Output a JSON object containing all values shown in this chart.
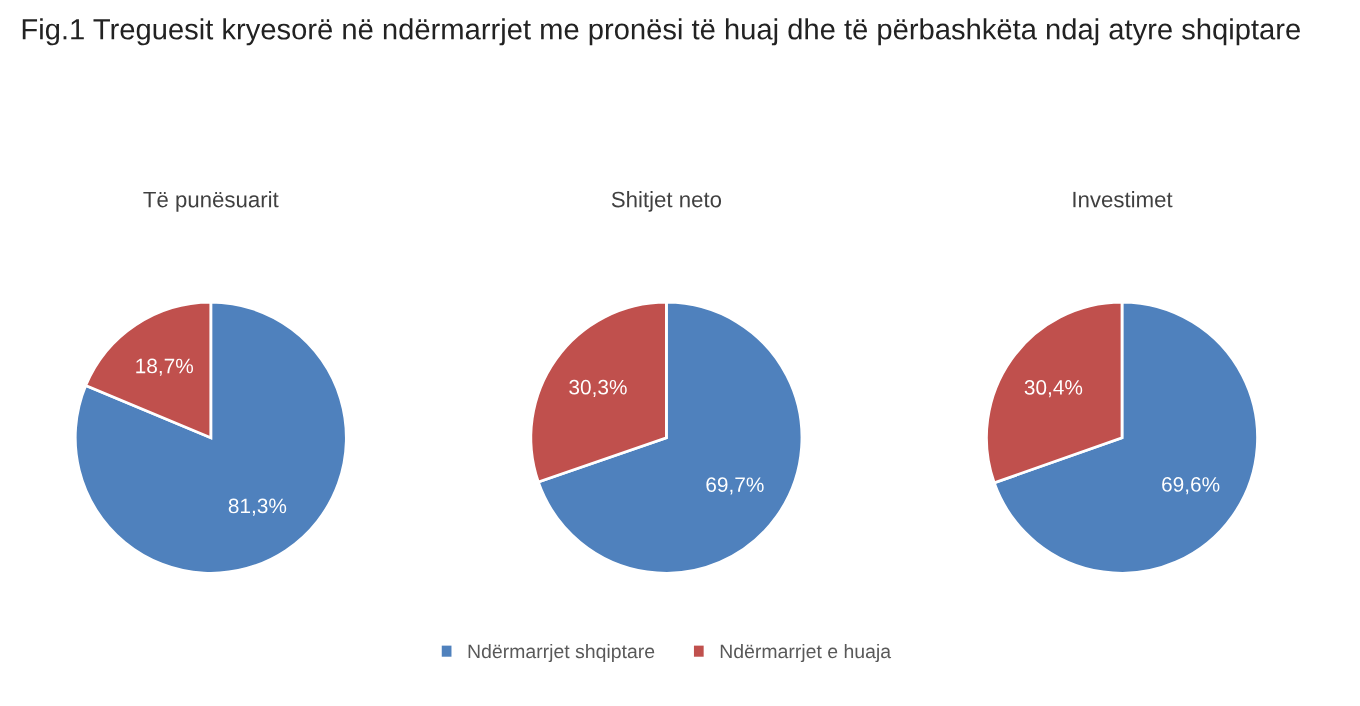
{
  "chart_data": [
    {
      "type": "pie",
      "title": "Të punësuarit",
      "annotations": [
        "Fig.1 Treguesit kryesorë në ndërmarrjet me pronësi të huaj dhe të përbashkëta ndaj atyre shqiptare"
      ],
      "categories": [
        "Ndërmarrjet shqiptare",
        "Ndërmarrjet e huaja"
      ],
      "values": [
        81.3,
        18.7
      ],
      "colors": [
        "#4f81bd",
        "#c0504d"
      ],
      "value_labels": [
        "81,3%",
        "18,7%"
      ],
      "legend": "bottom"
    },
    {
      "type": "pie",
      "title": "Shitjet neto",
      "categories": [
        null,
        null
      ],
      "values": [
        69.7,
        30.3
      ],
      "colors": [
        "#4f81bd",
        "#c0504d"
      ],
      "value_labels": [
        "69,7%",
        "30,3%"
      ]
    },
    {
      "type": "pie",
      "title": "Investimet",
      "categories": [
        null,
        null
      ],
      "values": [
        69.6,
        30.4
      ],
      "colors": [
        "#4f81bd",
        "#c0504d"
      ],
      "value_labels": [
        "69,6%",
        "30,4%"
      ]
    }
  ]
}
